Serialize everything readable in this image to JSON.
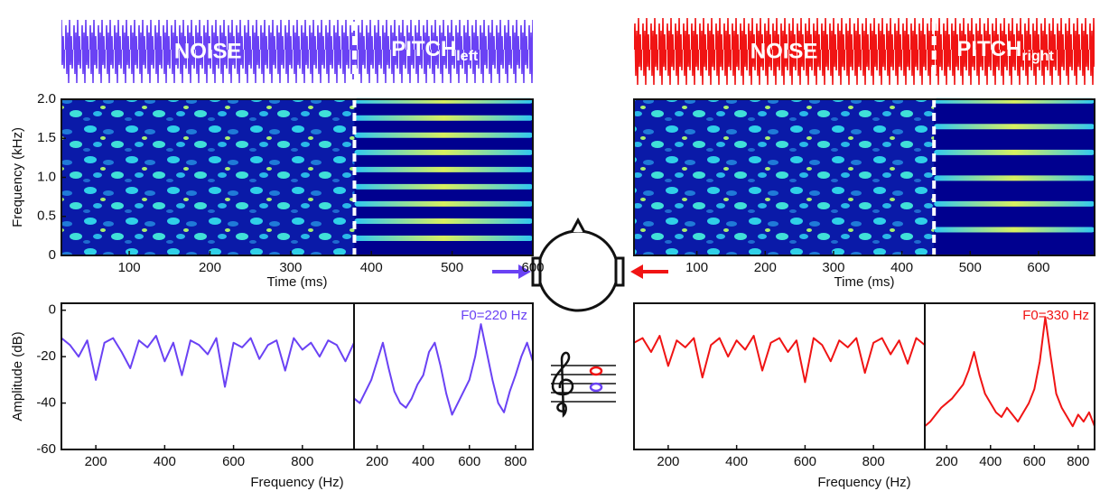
{
  "waveforms": [
    {
      "noise_label": "NOISE",
      "pitch_label": "PITCH",
      "pitch_subscript": "left",
      "color": "#6a42f4"
    },
    {
      "noise_label": "NOISE",
      "pitch_label": "PITCH",
      "pitch_subscript": "right",
      "color": "#f01414"
    }
  ],
  "chart_data": [
    {
      "type": "spectrogram",
      "y_label": "Frequency (kHz)",
      "x_label": "Time (ms)",
      "xlim": [
        16,
        600
      ],
      "xticks": [
        100,
        200,
        300,
        400,
        500,
        600
      ],
      "ylim": [
        0,
        2
      ],
      "yticks": [
        0,
        0.5,
        {
          "value": 1,
          "label": "1.0"
        },
        1.5,
        {
          "value": 2,
          "label": "2.0"
        }
      ],
      "onset": 379,
      "harmonics": [
        0.22,
        0.44,
        0.66,
        0.88,
        1.1,
        1.32,
        1.54,
        1.76,
        1.98
      ]
    },
    {
      "type": "spectrogram",
      "x_label": "Time (ms)",
      "xlim": [
        8,
        682
      ],
      "xticks": [
        100,
        200,
        300,
        400,
        500,
        600
      ],
      "ylim": [
        0,
        2
      ],
      "yticks": [],
      "onset": 447,
      "harmonics": [
        0.33,
        0.66,
        0.99,
        1.32,
        1.65,
        1.98
      ]
    },
    {
      "type": "line",
      "y_label": "Amplitude (dB)",
      "x_label": "Frequency (Hz)",
      "xlim": [
        100,
        950
      ],
      "xticks": [
        200,
        400,
        600,
        800
      ],
      "ylim": [
        -60,
        3
      ],
      "yticks": [
        0,
        -20,
        -40,
        -60
      ],
      "x": [
        100,
        125,
        150,
        175,
        200,
        225,
        250,
        275,
        300,
        325,
        350,
        375,
        400,
        425,
        450,
        475,
        500,
        525,
        550,
        575,
        600,
        625,
        650,
        675,
        700,
        725,
        750,
        775,
        800,
        825,
        850,
        875,
        900,
        925,
        950
      ],
      "series": [
        {
          "color": "#6a42f4",
          "values": [
            -12,
            -15,
            -20,
            -13,
            -30,
            -14,
            -12,
            -18,
            -25,
            -13,
            -16,
            -11,
            -22,
            -14,
            -28,
            -13,
            -15,
            -19,
            -12,
            -33,
            -14,
            -16,
            -12,
            -21,
            -15,
            -13,
            -26,
            -12,
            -17,
            -14,
            -20,
            -13,
            -15,
            -22,
            -14
          ]
        }
      ]
    },
    {
      "type": "line",
      "annotation": "F0=220 Hz",
      "xlim": [
        100,
        875
      ],
      "xticks": [
        200,
        400,
        600,
        800
      ],
      "ylim": [
        -60,
        3
      ],
      "yticks": [],
      "x": [
        100,
        125,
        150,
        175,
        200,
        225,
        250,
        275,
        300,
        325,
        350,
        375,
        400,
        425,
        450,
        475,
        500,
        525,
        550,
        575,
        600,
        625,
        650,
        675,
        700,
        725,
        750,
        775,
        800,
        825,
        850,
        875
      ],
      "series": [
        {
          "color": "#6a42f4",
          "values": [
            -38,
            -40,
            -35,
            -30,
            -22,
            -14,
            -25,
            -35,
            -40,
            -42,
            -38,
            -32,
            -28,
            -18,
            -14,
            -24,
            -36,
            -45,
            -40,
            -35,
            -30,
            -20,
            -6,
            -18,
            -30,
            -40,
            -44,
            -35,
            -28,
            -20,
            -14,
            -22
          ]
        }
      ]
    },
    {
      "type": "line",
      "x_label": "Frequency (Hz)",
      "xlim": [
        100,
        950
      ],
      "xticks": [
        200,
        400,
        600,
        800
      ],
      "ylim": [
        -60,
        3
      ],
      "yticks": [],
      "x": [
        100,
        125,
        150,
        175,
        200,
        225,
        250,
        275,
        300,
        325,
        350,
        375,
        400,
        425,
        450,
        475,
        500,
        525,
        550,
        575,
        600,
        625,
        650,
        675,
        700,
        725,
        750,
        775,
        800,
        825,
        850,
        875,
        900,
        925,
        950
      ],
      "series": [
        {
          "color": "#f01414",
          "values": [
            -14,
            -12,
            -18,
            -11,
            -24,
            -13,
            -16,
            -12,
            -29,
            -15,
            -12,
            -20,
            -13,
            -17,
            -11,
            -26,
            -14,
            -12,
            -18,
            -13,
            -31,
            -12,
            -15,
            -22,
            -13,
            -16,
            -12,
            -27,
            -14,
            -12,
            -19,
            -13,
            -23,
            -12,
            -15
          ]
        }
      ]
    },
    {
      "type": "line",
      "annotation": "F0=330 Hz",
      "xlim": [
        100,
        875
      ],
      "xticks": [
        200,
        400,
        600,
        800
      ],
      "ylim": [
        -60,
        3
      ],
      "yticks": [],
      "x": [
        100,
        125,
        150,
        175,
        200,
        225,
        250,
        275,
        300,
        325,
        350,
        375,
        400,
        425,
        450,
        475,
        500,
        525,
        550,
        575,
        600,
        625,
        650,
        675,
        700,
        725,
        750,
        775,
        800,
        825,
        850,
        875
      ],
      "series": [
        {
          "color": "#f01414",
          "values": [
            -50,
            -48,
            -45,
            -42,
            -40,
            -38,
            -35,
            -32,
            -26,
            -18,
            -28,
            -36,
            -40,
            -44,
            -46,
            -42,
            -45,
            -48,
            -44,
            -40,
            -34,
            -22,
            -3,
            -20,
            -36,
            -42,
            -46,
            -50,
            -45,
            -48,
            -44,
            -50
          ]
        }
      ]
    }
  ]
}
